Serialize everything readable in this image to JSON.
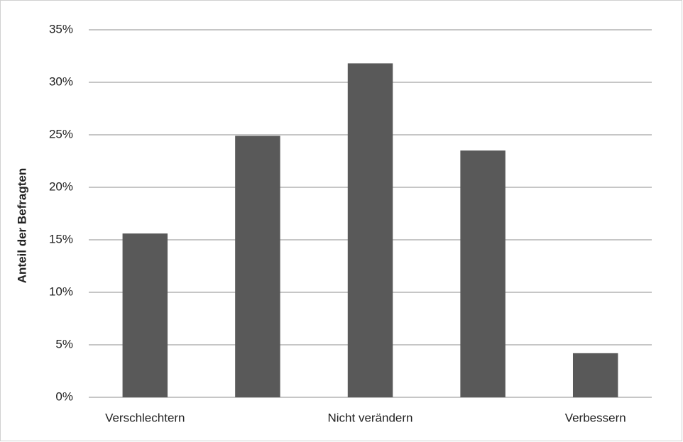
{
  "chart_data": {
    "type": "bar",
    "y_label": "Anteil der Befragten",
    "categories": [
      "Verschlechtern",
      null,
      "Nicht verändern",
      null,
      "Verbessern"
    ],
    "values": [
      15.6,
      24.9,
      31.8,
      23.5,
      4.2
    ],
    "color": "#595959",
    "ylim": [
      0,
      35
    ],
    "yticks": [
      {
        "value": 0,
        "label": "0%"
      },
      {
        "value": 5,
        "label": "5%"
      },
      {
        "value": 10,
        "label": "10%"
      },
      {
        "value": 15,
        "label": "15%"
      },
      {
        "value": 20,
        "label": "20%"
      },
      {
        "value": 25,
        "label": "25%"
      },
      {
        "value": 30,
        "label": "30%"
      },
      {
        "value": 35,
        "label": "35%"
      }
    ],
    "grid": true
  }
}
